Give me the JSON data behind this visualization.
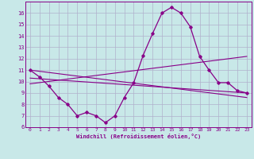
{
  "xlabel": "Windchill (Refroidissement éolien,°C)",
  "xlim": [
    -0.5,
    23.5
  ],
  "ylim": [
    6,
    17
  ],
  "xticks": [
    0,
    1,
    2,
    3,
    4,
    5,
    6,
    7,
    8,
    9,
    10,
    11,
    12,
    13,
    14,
    15,
    16,
    17,
    18,
    19,
    20,
    21,
    22,
    23
  ],
  "yticks": [
    6,
    7,
    8,
    9,
    10,
    11,
    12,
    13,
    14,
    15,
    16
  ],
  "background_color": "#c8e8e8",
  "grid_color": "#b0b0cc",
  "line_color": "#880088",
  "line1_x": [
    0,
    1,
    2,
    3,
    4,
    5,
    6,
    7,
    8,
    9,
    10,
    11,
    12,
    13,
    14,
    15,
    16,
    17,
    18,
    19,
    20,
    21,
    22,
    23
  ],
  "line1_y": [
    11.0,
    10.4,
    9.6,
    8.6,
    8.0,
    7.0,
    7.3,
    7.0,
    6.4,
    7.0,
    8.6,
    9.9,
    12.3,
    14.2,
    16.0,
    16.5,
    16.0,
    14.8,
    12.2,
    11.0,
    9.9,
    9.9,
    9.2,
    9.0
  ],
  "line2_x": [
    0,
    23
  ],
  "line2_y": [
    11.0,
    8.6
  ],
  "line3_x": [
    0,
    23
  ],
  "line3_y": [
    9.8,
    12.2
  ],
  "line4_x": [
    0,
    23
  ],
  "line4_y": [
    10.3,
    9.0
  ]
}
